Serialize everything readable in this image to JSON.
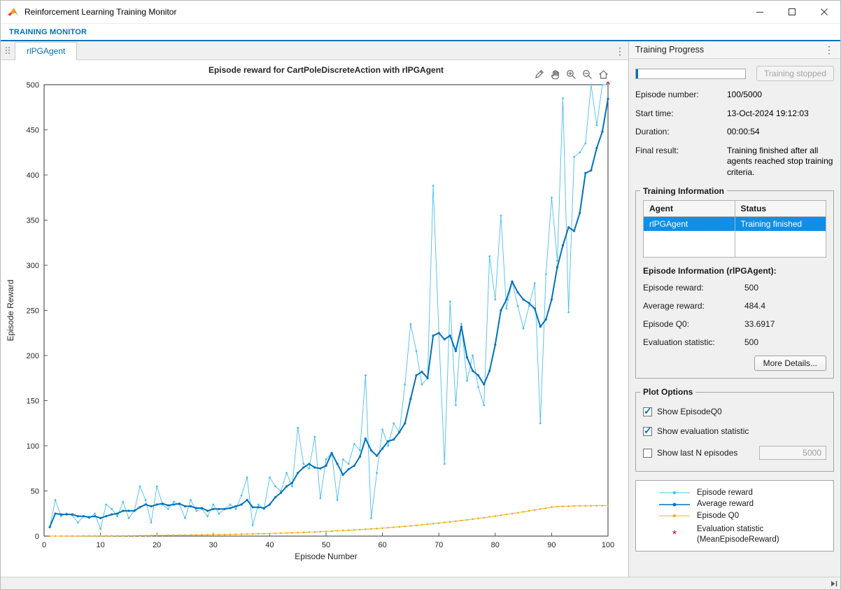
{
  "colors": {
    "accent_blue": "#0072BD",
    "selection_blue": "#0E8FE8",
    "episode_reward": "#4DBEEE",
    "average_reward": "#0072BD",
    "episode_q0": "#EDB120",
    "evaluation_statistic": "#C8102E"
  },
  "icons": {
    "kebab_glyph": "⋮",
    "check_glyph": "✓"
  },
  "window": {
    "title": "Reinforcement Learning Training Monitor"
  },
  "toolstrip": {
    "tab_label": "TRAINING MONITOR"
  },
  "doc_tab": {
    "label": "rlPGAgent"
  },
  "chart_data": {
    "type": "line",
    "title": "Episode reward for CartPoleDiscreteAction with rlPGAgent",
    "xlabel": "Episode Number",
    "ylabel": "Episode Reward",
    "xlim": [
      0,
      100
    ],
    "ylim": [
      0,
      500
    ],
    "xticks": [
      0,
      10,
      20,
      30,
      40,
      50,
      60,
      70,
      80,
      90,
      100
    ],
    "yticks": [
      0,
      50,
      100,
      150,
      200,
      250,
      300,
      350,
      400,
      450,
      500
    ],
    "x_start": 1,
    "grid": false,
    "legend_position": "external-right-panel",
    "series": [
      {
        "name": "Episode reward",
        "color": "#4DBEEE",
        "line_width": 0.9,
        "marker_r": 1.4,
        "values": [
          10,
          40,
          22,
          25,
          23,
          15,
          22,
          20,
          25,
          8,
          35,
          30,
          22,
          38,
          20,
          28,
          55,
          40,
          15,
          55,
          35,
          30,
          38,
          35,
          20,
          40,
          28,
          30,
          22,
          35,
          25,
          30,
          35,
          30,
          45,
          65,
          12,
          35,
          30,
          65,
          55,
          50,
          70,
          55,
          120,
          80,
          75,
          110,
          42,
          85,
          92,
          40,
          85,
          80,
          102,
          95,
          178,
          20,
          70,
          118,
          100,
          125,
          115,
          168,
          235,
          205,
          168,
          175,
          388,
          225,
          80,
          260,
          145,
          235,
          172,
          200,
          165,
          145,
          310,
          262,
          355,
          252,
          282,
          255,
          230,
          255,
          280,
          125,
          290,
          375,
          305,
          485,
          248,
          420,
          425,
          435,
          500,
          455,
          500,
          500
        ]
      },
      {
        "name": "Average reward",
        "color": "#0072BD",
        "line_width": 2,
        "marker_r": 1.6,
        "values": [
          10,
          25,
          24,
          24,
          24,
          22,
          22,
          21,
          22,
          20,
          22,
          24,
          25,
          28,
          28,
          28,
          32,
          35,
          33,
          35,
          36,
          34,
          35,
          36,
          33,
          33,
          31,
          31,
          28,
          30,
          30,
          30,
          31,
          33,
          35,
          40,
          32,
          32,
          31,
          35,
          43,
          48,
          55,
          59,
          70,
          76,
          80,
          76,
          75,
          78,
          92,
          80,
          68,
          74,
          78,
          88,
          108,
          95,
          89,
          97,
          105,
          107,
          115,
          125,
          152,
          178,
          182,
          175,
          222,
          225,
          218,
          222,
          205,
          232,
          198,
          183,
          178,
          168,
          183,
          212,
          250,
          262,
          282,
          270,
          262,
          258,
          252,
          232,
          240,
          262,
          298,
          322,
          342,
          338,
          358,
          402,
          405,
          430,
          448,
          484.4
        ]
      },
      {
        "name": "Episode Q0",
        "color": "#EDB120",
        "line_width": 1,
        "marker_r": 1.3,
        "values": [
          0,
          0,
          0,
          0.1,
          0.1,
          0.1,
          0.2,
          0.2,
          0.2,
          0.3,
          0.3,
          0.3,
          0.4,
          0.4,
          0.5,
          0.5,
          0.6,
          0.6,
          0.7,
          0.8,
          0.8,
          0.9,
          1,
          1,
          1.1,
          1.2,
          1.3,
          1.4,
          1.5,
          1.6,
          1.7,
          1.8,
          1.9,
          2,
          2.2,
          2.3,
          2.4,
          2.6,
          2.7,
          2.9,
          3.1,
          3.3,
          3.5,
          3.7,
          3.9,
          4.1,
          4.4,
          4.6,
          4.9,
          5.2,
          5.5,
          5.8,
          6.1,
          6.5,
          6.8,
          7.2,
          7.6,
          8,
          8.4,
          8.9,
          9.3,
          9.8,
          10.3,
          10.8,
          11.4,
          11.9,
          12.5,
          13.1,
          13.8,
          14.4,
          15.1,
          15.8,
          16.5,
          17.2,
          18,
          18.8,
          19.6,
          20.4,
          21.3,
          22.2,
          23.1,
          24,
          25,
          25.9,
          26.9,
          27.9,
          28.9,
          30,
          31,
          32.1,
          32.6,
          33,
          33.2,
          33.4,
          33.5,
          33.6,
          33.6,
          33.7,
          33.7,
          33.7
        ]
      }
    ],
    "evaluation_statistic": {
      "name": "Evaluation statistic (MeanEpisodeReward)",
      "color": "#C8102E",
      "marker": "asterisk",
      "points": [
        {
          "x": 100,
          "y": 500
        }
      ]
    }
  },
  "training_progress": {
    "header": "Training Progress",
    "progress_percent": 2,
    "stop_button_label": "Training stopped",
    "fields": [
      {
        "label": "Episode number:",
        "value": "100/5000"
      },
      {
        "label": "Start time:",
        "value": "13-Oct-2024 19:12:03"
      },
      {
        "label": "Duration:",
        "value": "00:00:54"
      },
      {
        "label": "Final result:",
        "value": "Training finished after all agents reached stop training criteria."
      }
    ]
  },
  "training_information": {
    "title": "Training Information",
    "table": {
      "headers": [
        "Agent",
        "Status"
      ],
      "rows": [
        {
          "agent": "rlPGAgent",
          "status": "Training finished",
          "selected": true
        }
      ]
    },
    "episode_info_title": "Episode Information (rlPGAgent):",
    "fields": [
      {
        "label": "Episode reward:",
        "value": "500"
      },
      {
        "label": "Average reward:",
        "value": "484.4"
      },
      {
        "label": "Episode Q0:",
        "value": "33.6917"
      },
      {
        "label": "Evaluation statistic:",
        "value": "500"
      }
    ],
    "more_details_label": "More Details..."
  },
  "plot_options": {
    "title": "Plot Options",
    "checkboxes": [
      {
        "label": "Show EpisodeQ0",
        "checked": true
      },
      {
        "label": "Show evaluation statistic",
        "checked": true
      },
      {
        "label": "Show last N episodes",
        "checked": false
      }
    ],
    "n_episodes_value": "5000"
  },
  "legend": {
    "entries": [
      {
        "label": "Episode reward",
        "color": "#4DBEEE",
        "marker": "line-dot"
      },
      {
        "label": "Average reward",
        "color": "#0072BD",
        "marker": "line-dot"
      },
      {
        "label": "Episode Q0",
        "color": "#EDB120",
        "marker": "line-dot"
      },
      {
        "label": "Evaluation statistic\n(MeanEpisodeReward)",
        "color": "#C8102E",
        "marker": "asterisk"
      }
    ]
  }
}
